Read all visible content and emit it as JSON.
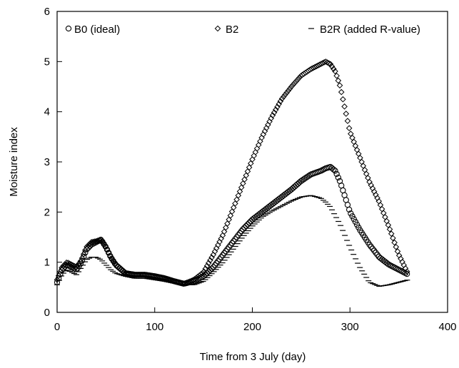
{
  "chart_data": {
    "type": "scatter",
    "title": "",
    "xlabel": "Time from 3 July (day)",
    "ylabel": "Moisture index",
    "xlim": [
      0,
      400
    ],
    "ylim": [
      0,
      6
    ],
    "xticks": [
      0,
      100,
      200,
      300,
      400
    ],
    "yticks": [
      0,
      1,
      2,
      3,
      4,
      5,
      6
    ],
    "grid": false,
    "legend_placement": "top",
    "series": [
      {
        "name": "B0 (ideal)",
        "marker": "circle",
        "color": "#000000",
        "x": [
          0,
          5,
          10,
          15,
          20,
          25,
          30,
          35,
          40,
          45,
          50,
          55,
          60,
          70,
          80,
          90,
          100,
          110,
          120,
          130,
          140,
          150,
          160,
          170,
          180,
          190,
          200,
          210,
          220,
          230,
          240,
          250,
          260,
          270,
          275,
          280,
          285,
          290,
          295,
          300,
          310,
          320,
          330,
          340,
          350,
          360
        ],
        "y": [
          0.6,
          0.85,
          0.95,
          0.9,
          0.85,
          1.0,
          1.25,
          1.35,
          1.4,
          1.45,
          1.3,
          1.1,
          0.95,
          0.78,
          0.75,
          0.75,
          0.72,
          0.68,
          0.62,
          0.57,
          0.62,
          0.72,
          0.9,
          1.15,
          1.4,
          1.65,
          1.85,
          2.0,
          2.15,
          2.3,
          2.45,
          2.62,
          2.75,
          2.82,
          2.87,
          2.9,
          2.82,
          2.6,
          2.3,
          2.0,
          1.65,
          1.35,
          1.1,
          0.95,
          0.85,
          0.75
        ]
      },
      {
        "name": "B2",
        "marker": "diamond",
        "color": "#000000",
        "x": [
          0,
          5,
          10,
          15,
          20,
          25,
          30,
          35,
          40,
          45,
          50,
          55,
          60,
          70,
          80,
          90,
          100,
          110,
          120,
          130,
          140,
          150,
          160,
          170,
          180,
          190,
          200,
          210,
          220,
          230,
          240,
          250,
          260,
          265,
          270,
          275,
          280,
          285,
          290,
          295,
          300,
          310,
          320,
          330,
          340,
          350,
          360
        ],
        "y": [
          0.65,
          0.9,
          1.0,
          0.95,
          0.9,
          1.05,
          1.3,
          1.4,
          1.42,
          1.45,
          1.3,
          1.1,
          0.95,
          0.78,
          0.75,
          0.75,
          0.72,
          0.68,
          0.62,
          0.57,
          0.65,
          0.8,
          1.15,
          1.55,
          2.05,
          2.55,
          3.05,
          3.5,
          3.9,
          4.25,
          4.5,
          4.72,
          4.85,
          4.9,
          4.95,
          5.0,
          4.95,
          4.8,
          4.5,
          4.05,
          3.6,
          3.1,
          2.6,
          2.2,
          1.7,
          1.15,
          0.75
        ]
      },
      {
        "name": "B2R (added R-value)",
        "marker": "dash",
        "color": "#000000",
        "x": [
          0,
          5,
          10,
          15,
          20,
          25,
          30,
          35,
          40,
          45,
          50,
          55,
          60,
          70,
          80,
          90,
          100,
          110,
          120,
          130,
          140,
          150,
          160,
          170,
          180,
          190,
          200,
          210,
          220,
          230,
          240,
          250,
          260,
          270,
          275,
          280,
          290,
          300,
          310,
          320,
          330,
          340,
          350,
          360
        ],
        "y": [
          0.55,
          0.75,
          0.85,
          0.8,
          0.75,
          0.9,
          1.05,
          1.1,
          1.1,
          1.05,
          0.95,
          0.85,
          0.78,
          0.72,
          0.68,
          0.68,
          0.65,
          0.62,
          0.58,
          0.55,
          0.55,
          0.62,
          0.8,
          1.0,
          1.25,
          1.5,
          1.72,
          1.9,
          2.02,
          2.12,
          2.22,
          2.3,
          2.33,
          2.28,
          2.2,
          2.1,
          1.75,
          1.3,
          0.9,
          0.6,
          0.52,
          0.55,
          0.6,
          0.65
        ]
      }
    ]
  }
}
